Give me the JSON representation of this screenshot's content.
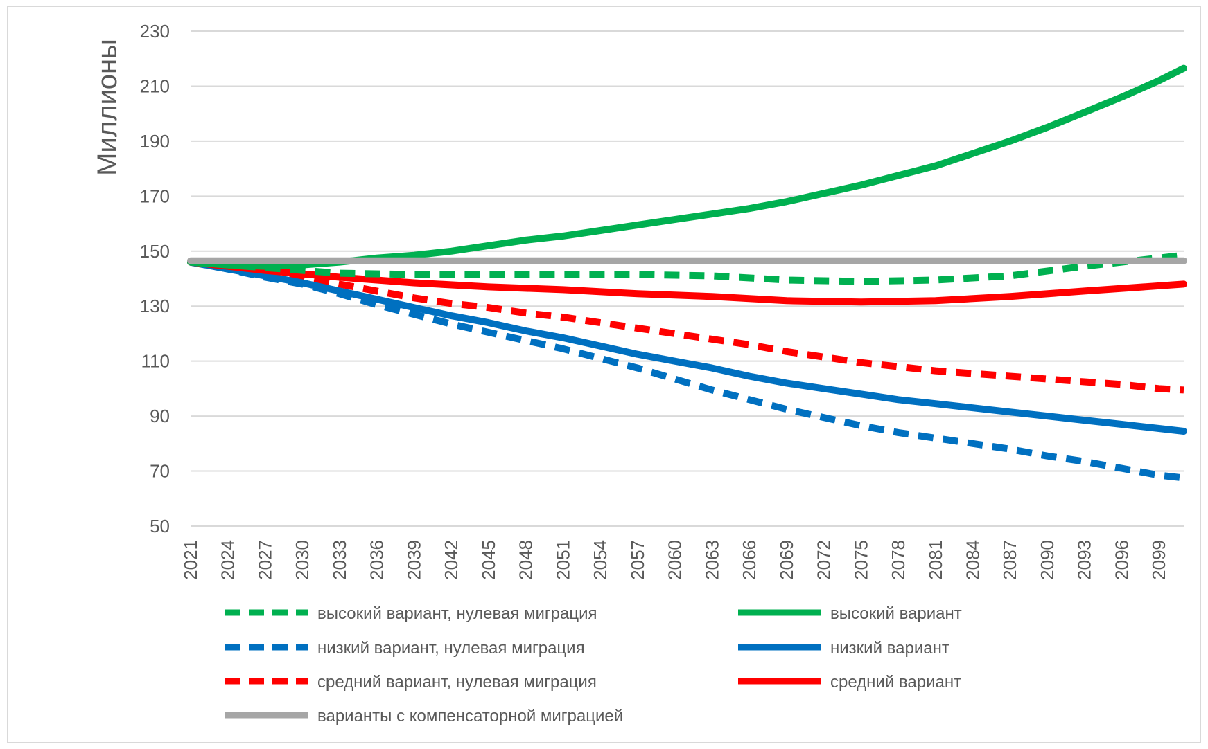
{
  "chart_data": {
    "type": "line",
    "title": "",
    "xlabel": "",
    "ylabel": "Миллионы",
    "ylim": [
      50,
      230
    ],
    "yticks": [
      50,
      70,
      90,
      110,
      130,
      150,
      170,
      190,
      210,
      230
    ],
    "xlim": [
      2021,
      2101
    ],
    "xticks": [
      2021,
      2024,
      2027,
      2030,
      2033,
      2036,
      2039,
      2042,
      2045,
      2048,
      2051,
      2054,
      2057,
      2060,
      2063,
      2066,
      2069,
      2072,
      2075,
      2078,
      2081,
      2084,
      2087,
      2090,
      2093,
      2096,
      2099
    ],
    "grid": "horizontal",
    "legend_position": "bottom",
    "series": [
      {
        "name": "высокий вариант, нулевая миграция",
        "color": "#00b050",
        "style": "dashed",
        "x": [
          2021,
          2027,
          2033,
          2039,
          2045,
          2051,
          2057,
          2063,
          2069,
          2075,
          2081,
          2087,
          2093,
          2101
        ],
        "y": [
          146,
          144,
          142,
          141.5,
          141.5,
          141.5,
          141.5,
          141,
          139.5,
          139,
          139.5,
          141,
          144.5,
          148.5
        ]
      },
      {
        "name": "высокий вариант",
        "color": "#00b050",
        "style": "solid",
        "x": [
          2021,
          2024,
          2027,
          2030,
          2033,
          2036,
          2039,
          2042,
          2045,
          2048,
          2051,
          2054,
          2057,
          2060,
          2063,
          2066,
          2069,
          2072,
          2075,
          2078,
          2081,
          2084,
          2087,
          2090,
          2093,
          2096,
          2099,
          2101
        ],
        "y": [
          146,
          145,
          144.5,
          145,
          146,
          147.5,
          148.5,
          150,
          152,
          154,
          155.5,
          157.5,
          159.5,
          161.5,
          163.5,
          165.5,
          168,
          171,
          174,
          177.5,
          181,
          185.5,
          190,
          195,
          200.5,
          206,
          212,
          216.5
        ]
      },
      {
        "name": "низкий вариант, нулевая миграция",
        "color": "#0070c0",
        "style": "dashed",
        "x": [
          2021,
          2024,
          2027,
          2030,
          2033,
          2036,
          2039,
          2042,
          2045,
          2048,
          2051,
          2054,
          2057,
          2060,
          2063,
          2066,
          2069,
          2072,
          2075,
          2078,
          2081,
          2084,
          2087,
          2090,
          2093,
          2096,
          2099,
          2101
        ],
        "y": [
          146,
          143.5,
          140.5,
          138,
          134.5,
          130.5,
          127,
          123.5,
          120.5,
          117.5,
          114.5,
          111,
          107.5,
          103.5,
          99.5,
          96,
          92.5,
          89.5,
          86.5,
          84,
          82,
          80,
          78,
          75.5,
          73.5,
          71,
          68.5,
          67.5
        ]
      },
      {
        "name": "низкий вариант",
        "color": "#0070c0",
        "style": "solid",
        "x": [
          2021,
          2024,
          2027,
          2030,
          2033,
          2036,
          2039,
          2042,
          2045,
          2048,
          2051,
          2054,
          2057,
          2060,
          2063,
          2066,
          2069,
          2072,
          2075,
          2078,
          2081,
          2084,
          2087,
          2090,
          2093,
          2096,
          2099,
          2101
        ],
        "y": [
          146,
          143.5,
          141,
          138.5,
          135.5,
          132.5,
          129.5,
          126.5,
          124,
          121,
          118.5,
          115.5,
          112.5,
          110,
          107.5,
          104.5,
          102,
          100,
          98,
          96,
          94.5,
          93,
          91.5,
          90,
          88.5,
          87,
          85.5,
          84.5
        ]
      },
      {
        "name": "средний вариант, нулевая миграция",
        "color": "#ff0000",
        "style": "dashed",
        "x": [
          2021,
          2024,
          2027,
          2030,
          2033,
          2036,
          2039,
          2042,
          2045,
          2048,
          2051,
          2054,
          2057,
          2060,
          2063,
          2066,
          2069,
          2072,
          2075,
          2078,
          2081,
          2084,
          2087,
          2090,
          2093,
          2096,
          2099,
          2101
        ],
        "y": [
          146,
          144,
          142.5,
          140.5,
          138,
          135.5,
          133,
          131,
          129.5,
          127.5,
          126,
          124,
          122,
          120,
          118,
          116,
          113.5,
          111.5,
          109.5,
          108,
          106.5,
          105.5,
          104.5,
          103.5,
          102.5,
          101.5,
          100,
          99.5
        ]
      },
      {
        "name": "средний вариант",
        "color": "#ff0000",
        "style": "solid",
        "x": [
          2021,
          2027,
          2033,
          2039,
          2045,
          2051,
          2057,
          2063,
          2069,
          2075,
          2081,
          2087,
          2093,
          2101
        ],
        "y": [
          146,
          143,
          140.5,
          138.5,
          137,
          136,
          134.5,
          133.5,
          132,
          131.5,
          132,
          133.5,
          135.5,
          138
        ]
      },
      {
        "name": "варианты с компенсаторной миграцией",
        "color": "#a6a6a6",
        "style": "solid",
        "x": [
          2021,
          2101
        ],
        "y": [
          146.5,
          146.5
        ]
      }
    ],
    "legend_order": [
      0,
      1,
      2,
      3,
      4,
      5,
      6
    ],
    "legend_labels": [
      "высокий вариант, нулевая миграция",
      "высокий вариант",
      "низкий вариант, нулевая миграция",
      "низкий вариант",
      "средний вариант, нулевая миграция",
      "средний вариант",
      "варианты с компенсаторной миграцией"
    ]
  }
}
